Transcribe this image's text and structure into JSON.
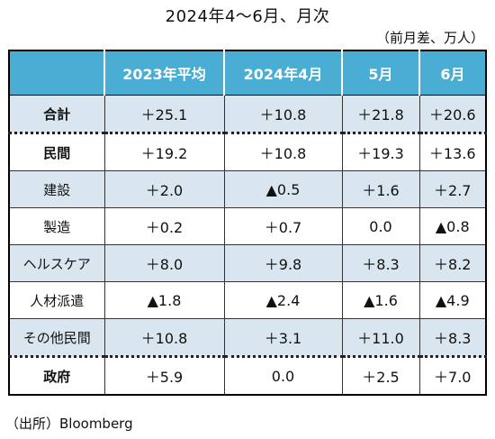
{
  "title": "2024年4〜6月、月次",
  "unit_note": "（前月差、万人）",
  "columns": [
    "",
    "2023年平均",
    "2024年4月",
    "5月",
    "6月"
  ],
  "rows": [
    {
      "label": "合計",
      "values": [
        "＋25.1",
        "＋10.8",
        "＋21.8",
        "＋20.6"
      ]
    },
    {
      "label": "民間",
      "values": [
        "＋19.2",
        "＋10.8",
        "＋19.3",
        "＋13.6"
      ]
    },
    {
      "label": "建設",
      "values": [
        "＋2.0",
        "▲0.5",
        "＋1.6",
        "＋2.7"
      ]
    },
    {
      "label": "製造",
      "values": [
        "＋0.2",
        "＋0.7",
        "0.0",
        "▲0.8"
      ]
    },
    {
      "label": "ヘルスケア",
      "values": [
        "＋8.0",
        "＋9.8",
        "＋8.3",
        "＋8.2"
      ]
    },
    {
      "label": "人材派遣",
      "values": [
        "▲1.8",
        "▲2.4",
        "▲1.6",
        "▲4.9"
      ]
    },
    {
      "label": "その他民間",
      "values": [
        "＋10.8",
        "＋3.1",
        "＋11.0",
        "＋8.3"
      ]
    },
    {
      "label": "政府",
      "values": [
        "＋5.9",
        "0.0",
        "＋2.5",
        "＋7.0"
      ]
    }
  ],
  "source": "（出所）Bloomberg",
  "colors": {
    "header_bg": "#4aaed4",
    "row_shade": "#d9e6ef"
  }
}
